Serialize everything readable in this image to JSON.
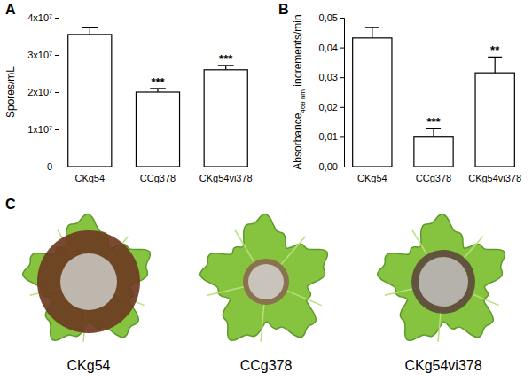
{
  "chart_data": [
    {
      "type": "bar",
      "title": "A",
      "categories": [
        "CKg54",
        "CCg378",
        "CKg54vi378"
      ],
      "values": [
        35500000,
        20000000,
        26000000
      ],
      "errors": [
        1800000,
        1000000,
        1200000
      ],
      "color": "#ffffff",
      "ylabel": [
        "Spores/mL"
      ],
      "ylim": [
        0,
        40000000
      ],
      "yticks": [
        0,
        {
          "value": 10000000,
          "label": "1x10⁷"
        },
        {
          "value": 20000000,
          "label": "2x10⁷"
        },
        {
          "value": 30000000,
          "label": "3x10⁷"
        },
        {
          "value": 40000000,
          "label": "4x10⁷"
        }
      ],
      "annotations": [
        {
          "category": "CCg378",
          "text": "***"
        },
        {
          "category": "CKg54vi378",
          "text": "***"
        }
      ]
    },
    {
      "type": "bar",
      "title": "B",
      "categories": [
        "CKg54",
        "CCg378",
        "CKg54vi378"
      ],
      "values": [
        0.0432,
        0.0099,
        0.0315
      ],
      "errors": [
        0.0035,
        0.0028,
        0.0053
      ],
      "color": "#ffffff",
      "ylabel": [
        "Absorbance",
        "468 nm",
        " increments/min"
      ],
      "ylim": [
        0,
        0.05
      ],
      "yticks": [
        {
          "value": 0,
          "label": "0,00"
        },
        {
          "value": 0.01,
          "label": "0,01"
        },
        {
          "value": 0.02,
          "label": "0,02"
        },
        {
          "value": 0.03,
          "label": "0,03"
        },
        {
          "value": 0.04,
          "label": "0,04"
        },
        {
          "value": 0.05,
          "label": "0,05"
        }
      ],
      "annotations": [
        {
          "category": "CCg378",
          "text": "***"
        },
        {
          "category": "CKg54vi378",
          "text": "**"
        }
      ]
    }
  ],
  "panel_c": {
    "title": "C",
    "labels": [
      "CKg54",
      "CCg378",
      "CKg54vi378"
    ]
  }
}
